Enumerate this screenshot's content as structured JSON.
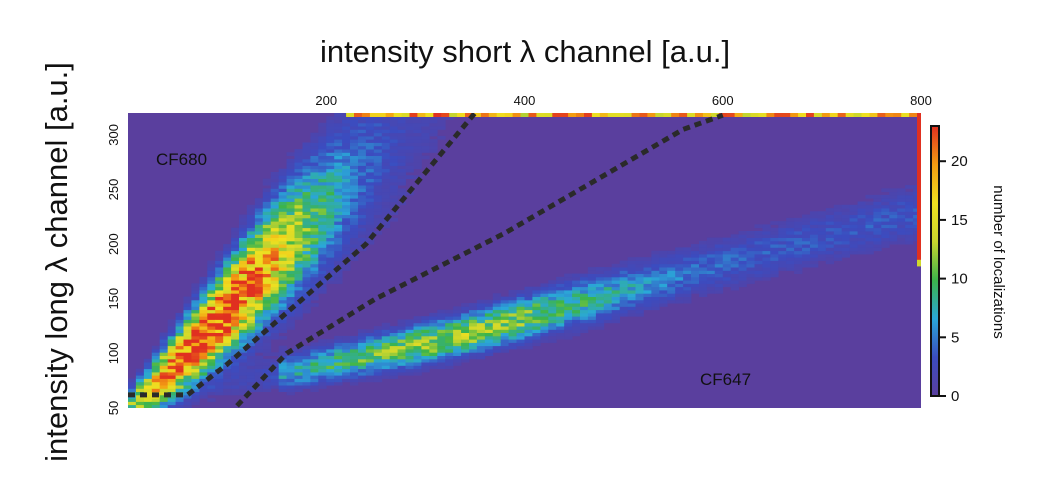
{
  "chart_data": {
    "type": "heatmap",
    "xlabel": "intensity short λ channel [a.u.]",
    "ylabel": "intensity long λ channel [a.u.]",
    "xlim": [
      0,
      800
    ],
    "ylim": [
      50,
      320
    ],
    "x_ticks": [
      "200",
      "400",
      "600",
      "800"
    ],
    "y_ticks": [
      "50",
      "100",
      "150",
      "200",
      "250",
      "300"
    ],
    "x_axis_position": "top",
    "colorbar": {
      "label": "number of localizations",
      "min": 0,
      "max": 23,
      "ticks": [
        "0",
        "5",
        "10",
        "15",
        "20"
      ],
      "colors": [
        "#5a3f9e",
        "#3b4cc0",
        "#2aa8d8",
        "#3cb44b",
        "#c8d62e",
        "#f0e020",
        "#f39c12",
        "#e03020"
      ]
    },
    "populations": [
      {
        "label": "CF680",
        "ridge_x": [
          15,
          80,
          150,
          260
        ],
        "ridge_y": [
          60,
          120,
          190,
          290
        ],
        "peak_count": 23
      },
      {
        "label": "CF647",
        "ridge_x": [
          120,
          330,
          550,
          800
        ],
        "ridge_y": [
          75,
          115,
          170,
          230
        ],
        "peak_count": 9
      }
    ],
    "boundaries": [
      {
        "x": [
          0,
          60,
          100,
          240,
          350
        ],
        "y": [
          62,
          62,
          90,
          200,
          320
        ]
      },
      {
        "x": [
          110,
          160,
          250,
          380,
          560,
          600
        ],
        "y": [
          52,
          100,
          150,
          210,
          305,
          318
        ]
      }
    ]
  }
}
